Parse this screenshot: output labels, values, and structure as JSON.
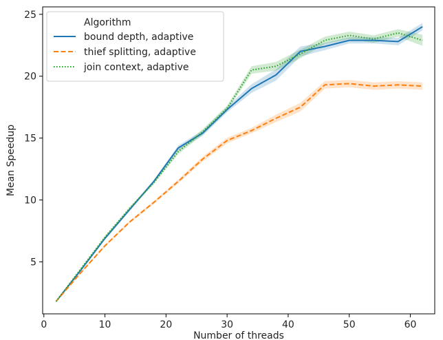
{
  "chart_data": {
    "type": "line",
    "xlabel": "Number of threads",
    "ylabel": "Mean Speedup",
    "xlim": [
      -0.2,
      64
    ],
    "ylim": [
      0.8,
      25.6
    ],
    "xticks": [
      0,
      10,
      20,
      30,
      40,
      50,
      60
    ],
    "yticks": [
      5,
      10,
      15,
      20,
      25
    ],
    "grid": false,
    "legend": {
      "title": "Algorithm",
      "placement": "top-left"
    },
    "series": [
      {
        "name": "bound depth, adaptive",
        "color": "#1f77b4",
        "style": "solid",
        "x": [
          2,
          6,
          10,
          14,
          18,
          22,
          26,
          30,
          34,
          38,
          42,
          46,
          50,
          54,
          58,
          62
        ],
        "y": [
          1.8,
          4.3,
          6.9,
          9.2,
          11.5,
          14.2,
          15.4,
          17.3,
          19.0,
          20.1,
          22.0,
          22.4,
          22.9,
          22.9,
          22.8,
          24.0
        ],
        "band": [
          0.05,
          0.08,
          0.1,
          0.12,
          0.12,
          0.2,
          0.22,
          0.22,
          0.35,
          0.45,
          0.4,
          0.3,
          0.25,
          0.25,
          0.3,
          0.3
        ]
      },
      {
        "name": "thief  splitting, adaptive",
        "color": "#ff7f0e",
        "style": "dashed",
        "x": [
          2,
          6,
          10,
          14,
          18,
          22,
          26,
          30,
          34,
          38,
          42,
          46,
          50,
          54,
          58,
          62
        ],
        "y": [
          1.8,
          4.1,
          6.3,
          8.2,
          9.8,
          11.5,
          13.3,
          14.8,
          15.6,
          16.6,
          17.5,
          19.3,
          19.4,
          19.2,
          19.3,
          19.2
        ],
        "band": [
          0.05,
          0.08,
          0.1,
          0.1,
          0.12,
          0.15,
          0.2,
          0.22,
          0.22,
          0.3,
          0.35,
          0.3,
          0.3,
          0.3,
          0.3,
          0.3
        ]
      },
      {
        "name": "join context, adaptive",
        "color": "#2ca02c",
        "style": "dotted",
        "x": [
          2,
          6,
          10,
          14,
          18,
          22,
          26,
          30,
          34,
          38,
          42,
          46,
          50,
          54,
          58,
          62
        ],
        "y": [
          1.8,
          4.4,
          7.0,
          9.3,
          11.4,
          13.9,
          15.5,
          17.4,
          20.5,
          20.8,
          21.8,
          22.9,
          23.3,
          23.0,
          23.5,
          22.9
        ],
        "band": [
          0.05,
          0.08,
          0.1,
          0.12,
          0.12,
          0.2,
          0.22,
          0.22,
          0.3,
          0.35,
          0.35,
          0.3,
          0.3,
          0.3,
          0.3,
          0.45
        ]
      }
    ]
  }
}
